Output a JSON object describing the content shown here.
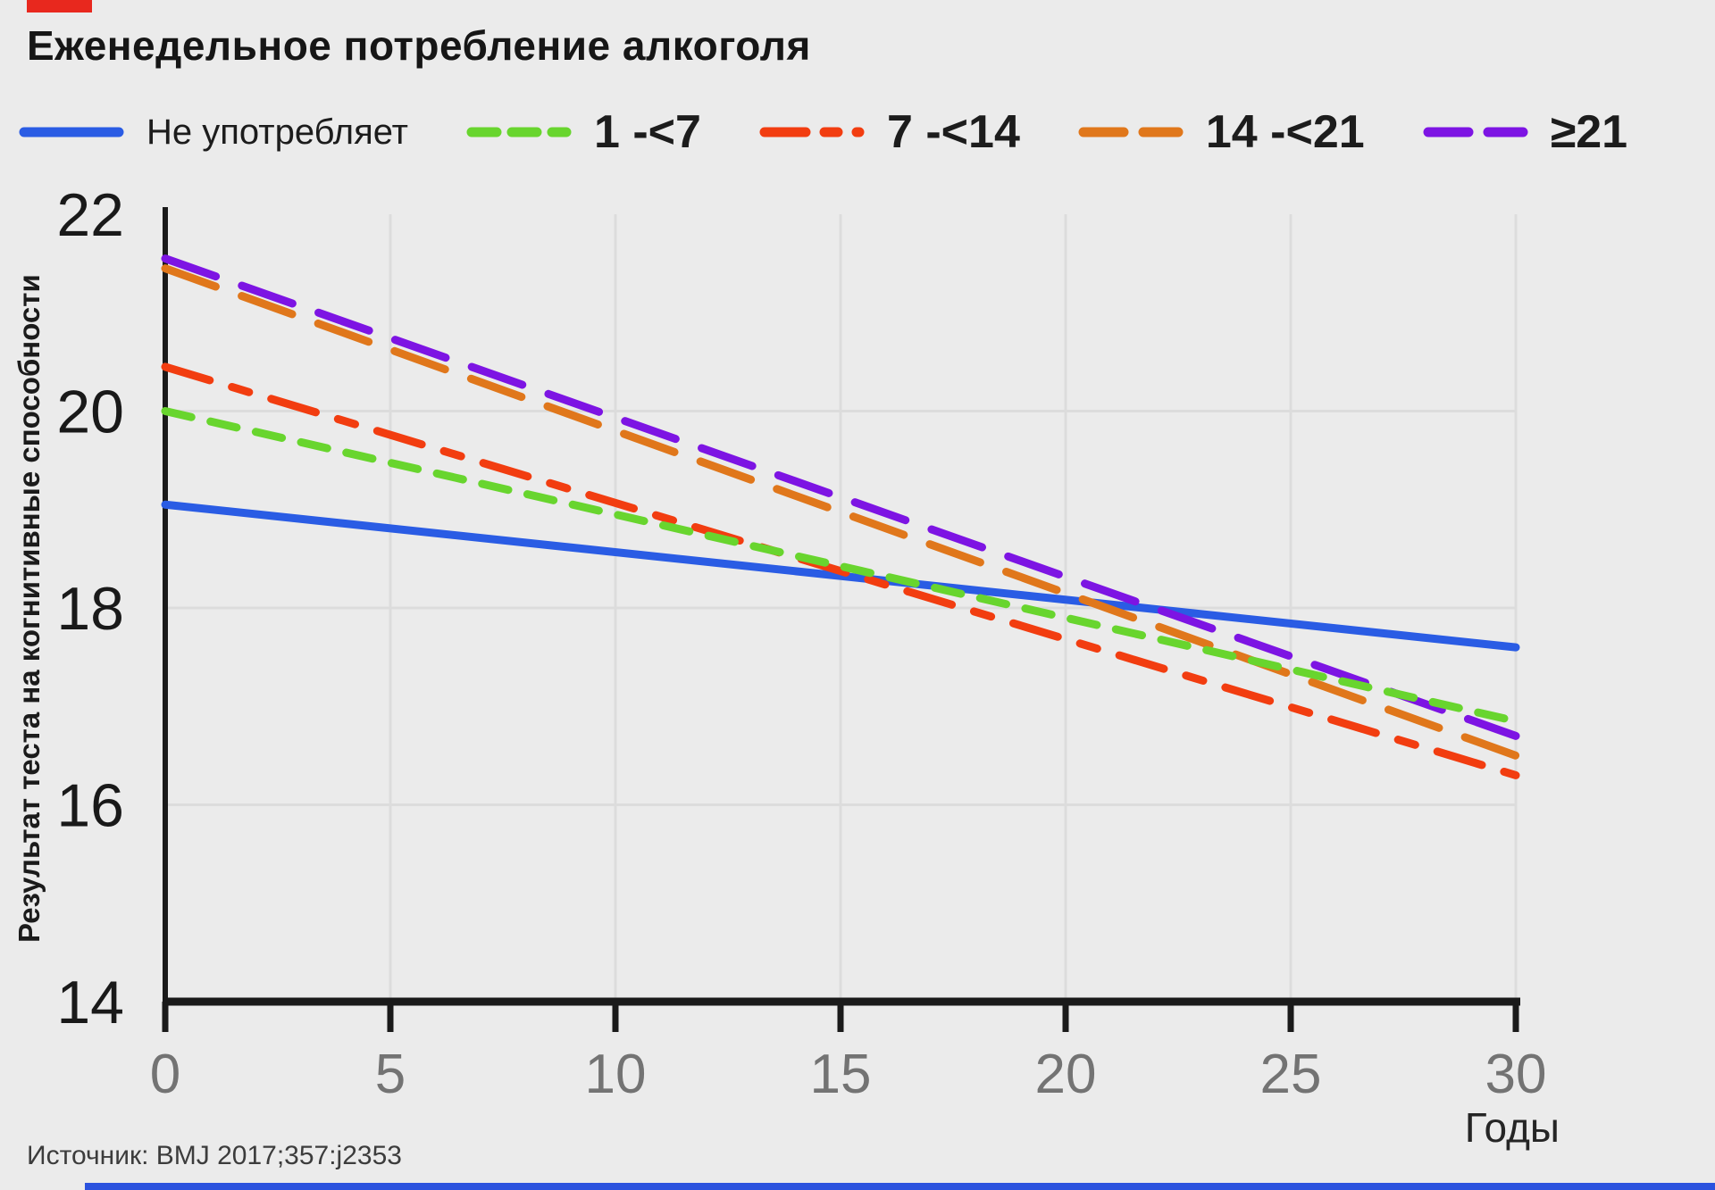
{
  "header": {
    "title": "Еженедельное потребление алкоголя"
  },
  "legend": [
    {
      "label": "Не употребляет",
      "color": "#2a5ce4",
      "style": "solid"
    },
    {
      "label": "1 -<7",
      "color": "#68d52e",
      "style": "short-dash"
    },
    {
      "label": "7 -<14",
      "color": "#f23d10",
      "style": "dash-dot"
    },
    {
      "label": "14 -<21",
      "color": "#e0771b",
      "style": "long-dash"
    },
    {
      "label": "≥21",
      "color": "#7d14e3",
      "style": "long-dash"
    }
  ],
  "axis": {
    "x_title": "Годы",
    "y_title": "Результат теста на когнитивные способности"
  },
  "chart_data": {
    "type": "line",
    "title": "Еженедельное потребление алкоголя",
    "xlabel": "Годы",
    "ylabel": "Результат теста на когнитивные способности",
    "x": [
      0,
      30
    ],
    "xlim": [
      0,
      30
    ],
    "ylim": [
      14,
      22
    ],
    "x_ticks": [
      0,
      5,
      10,
      15,
      20,
      25,
      30
    ],
    "y_ticks": [
      14,
      16,
      18,
      20,
      22
    ],
    "grid": true,
    "legend_position": "top",
    "series": [
      {
        "name": "Не употребляет",
        "values": [
          19.05,
          17.6
        ],
        "color": "#2a5ce4",
        "dash": "solid"
      },
      {
        "name": "1 -<7",
        "values": [
          20.0,
          16.85
        ],
        "color": "#68d52e",
        "dash": "short-dash"
      },
      {
        "name": "7 -<14",
        "values": [
          20.45,
          16.3
        ],
        "color": "#f23d10",
        "dash": "dash-dot"
      },
      {
        "name": "14 -<21",
        "values": [
          21.45,
          16.5
        ],
        "color": "#e0771b",
        "dash": "long-dash"
      },
      {
        "name": "≥21",
        "values": [
          21.55,
          16.7
        ],
        "color": "#7d14e3",
        "dash": "long-dash"
      }
    ]
  },
  "footer": {
    "source": "Источник: BMJ 2017;357:j2353"
  },
  "colors": {
    "background": "#ebebeb",
    "accent_red": "#e8281e",
    "bottom_bar_blue": "#2b52de",
    "axis": "#1a1a1a",
    "grid": "#dcdcdc",
    "tick_label_x": "#737373",
    "tick_label_y": "#191919"
  }
}
